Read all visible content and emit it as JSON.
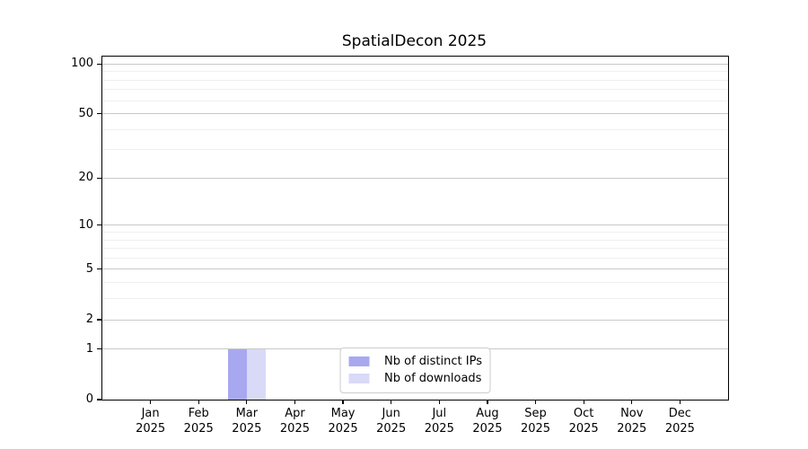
{
  "title": "SpatialDecon 2025",
  "chart_data": {
    "type": "bar",
    "title": "SpatialDecon 2025",
    "xlabel": "",
    "ylabel": "",
    "categories": [
      "Jan",
      "Feb",
      "Mar",
      "Apr",
      "May",
      "Jun",
      "Jul",
      "Aug",
      "Sep",
      "Oct",
      "Nov",
      "Dec"
    ],
    "category_year": "2025",
    "series": [
      {
        "name": "Nb of distinct IPs",
        "color": "#a8a8f0",
        "values": [
          0,
          0,
          1,
          0,
          0,
          0,
          0,
          0,
          0,
          0,
          0,
          0
        ]
      },
      {
        "name": "Nb of downloads",
        "color": "#d9d9f8",
        "values": [
          0,
          0,
          1,
          0,
          0,
          0,
          0,
          0,
          0,
          0,
          0,
          0
        ]
      }
    ],
    "yscale": "log1p",
    "ylim": [
      0,
      100
    ],
    "y_major_ticks": [
      0,
      1,
      2,
      5,
      10,
      20,
      50,
      100
    ],
    "y_minor_gridlines": [
      3,
      4,
      6,
      7,
      8,
      9,
      30,
      40,
      60,
      70,
      80,
      90
    ],
    "grid": true,
    "legend_position": "lower center"
  },
  "colors": {
    "background": "#ffffff",
    "spine": "#000000",
    "major_grid": "#c8c8c8",
    "minor_grid": "#efefef",
    "text": "#000000",
    "legend_border": "#cccccc",
    "bar_distinct_ips": "#a8a8f0",
    "bar_downloads": "#d9d9f8"
  }
}
